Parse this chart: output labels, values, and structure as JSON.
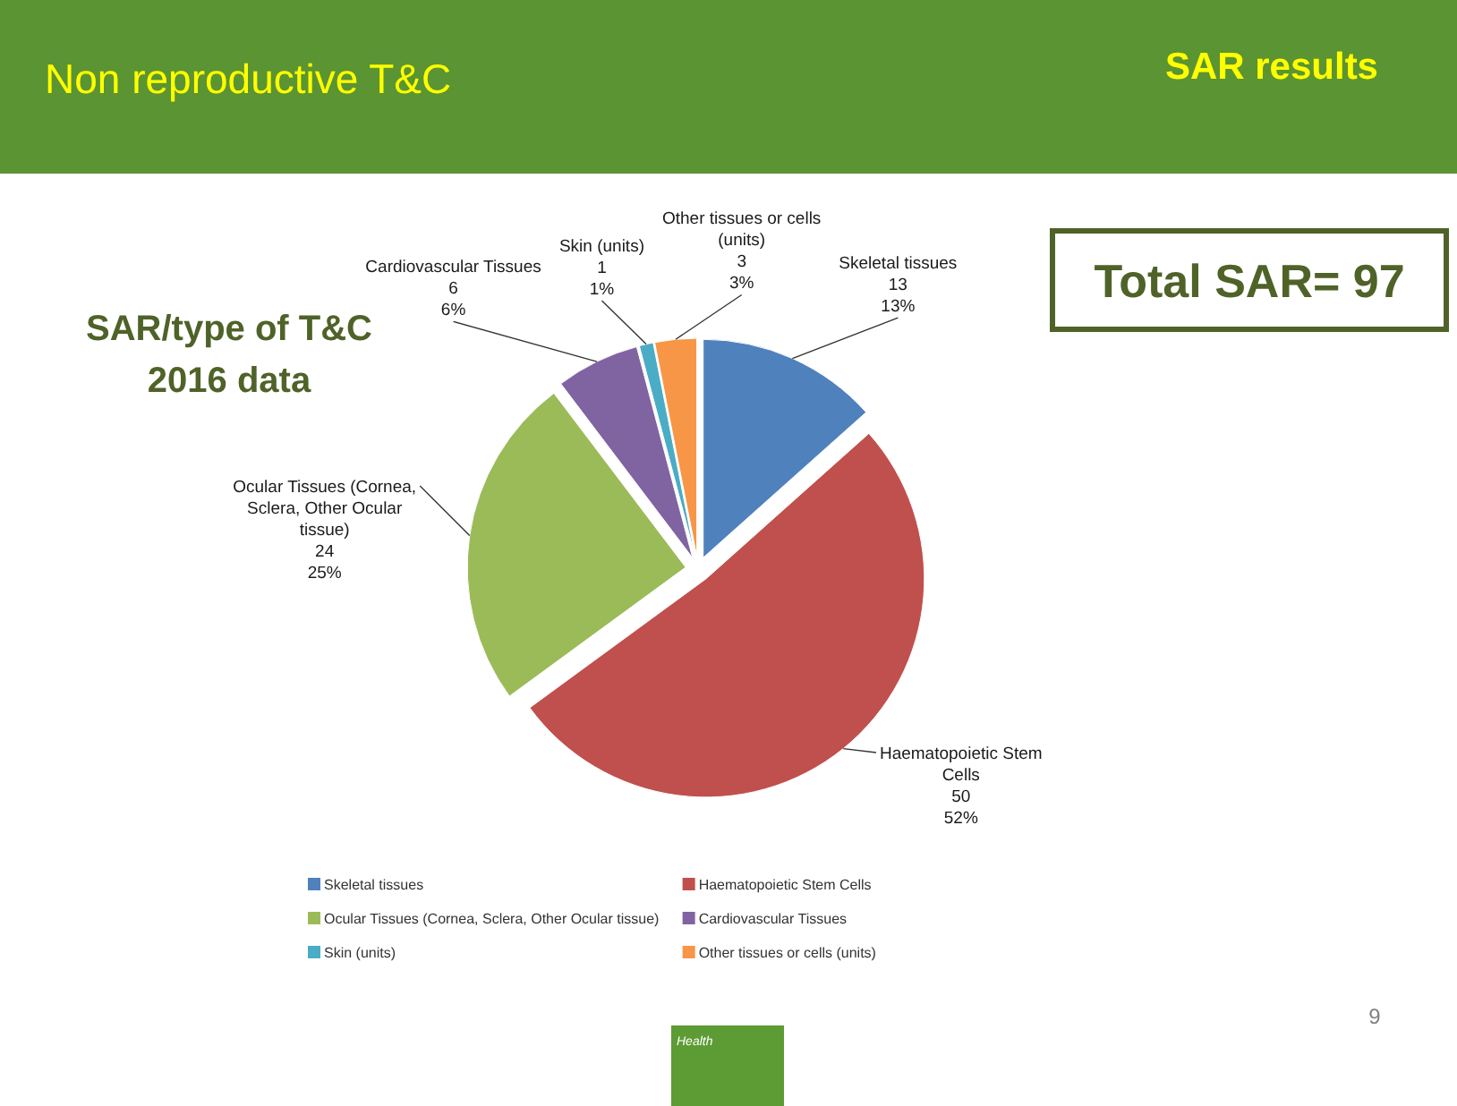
{
  "chart_data": {
    "type": "pie",
    "title": "SAR/type of T&C 2016 data",
    "categories": [
      "Skeletal tissues",
      "Haematopoietic Stem Cells",
      "Ocular Tissues (Cornea, Sclera, Other Ocular tissue)",
      "Cardiovascular Tissues",
      "Skin (units)",
      "Other tissues or cells (units)"
    ],
    "values": [
      13,
      50,
      24,
      6,
      1,
      3
    ],
    "colors": [
      "#4f81bd",
      "#c0504d",
      "#9bbb59",
      "#8064a2",
      "#4bacc6",
      "#f79646"
    ],
    "value_labels": [
      "13\n13%",
      "50\n52%",
      "24\n25%",
      "6\n6%",
      "1\n1%",
      "3\n3%"
    ],
    "legend": "bottom",
    "annotations": [
      "Non reproductive T&C",
      "SAR results",
      "Total SAR= 97",
      "Health",
      "9"
    ]
  }
}
